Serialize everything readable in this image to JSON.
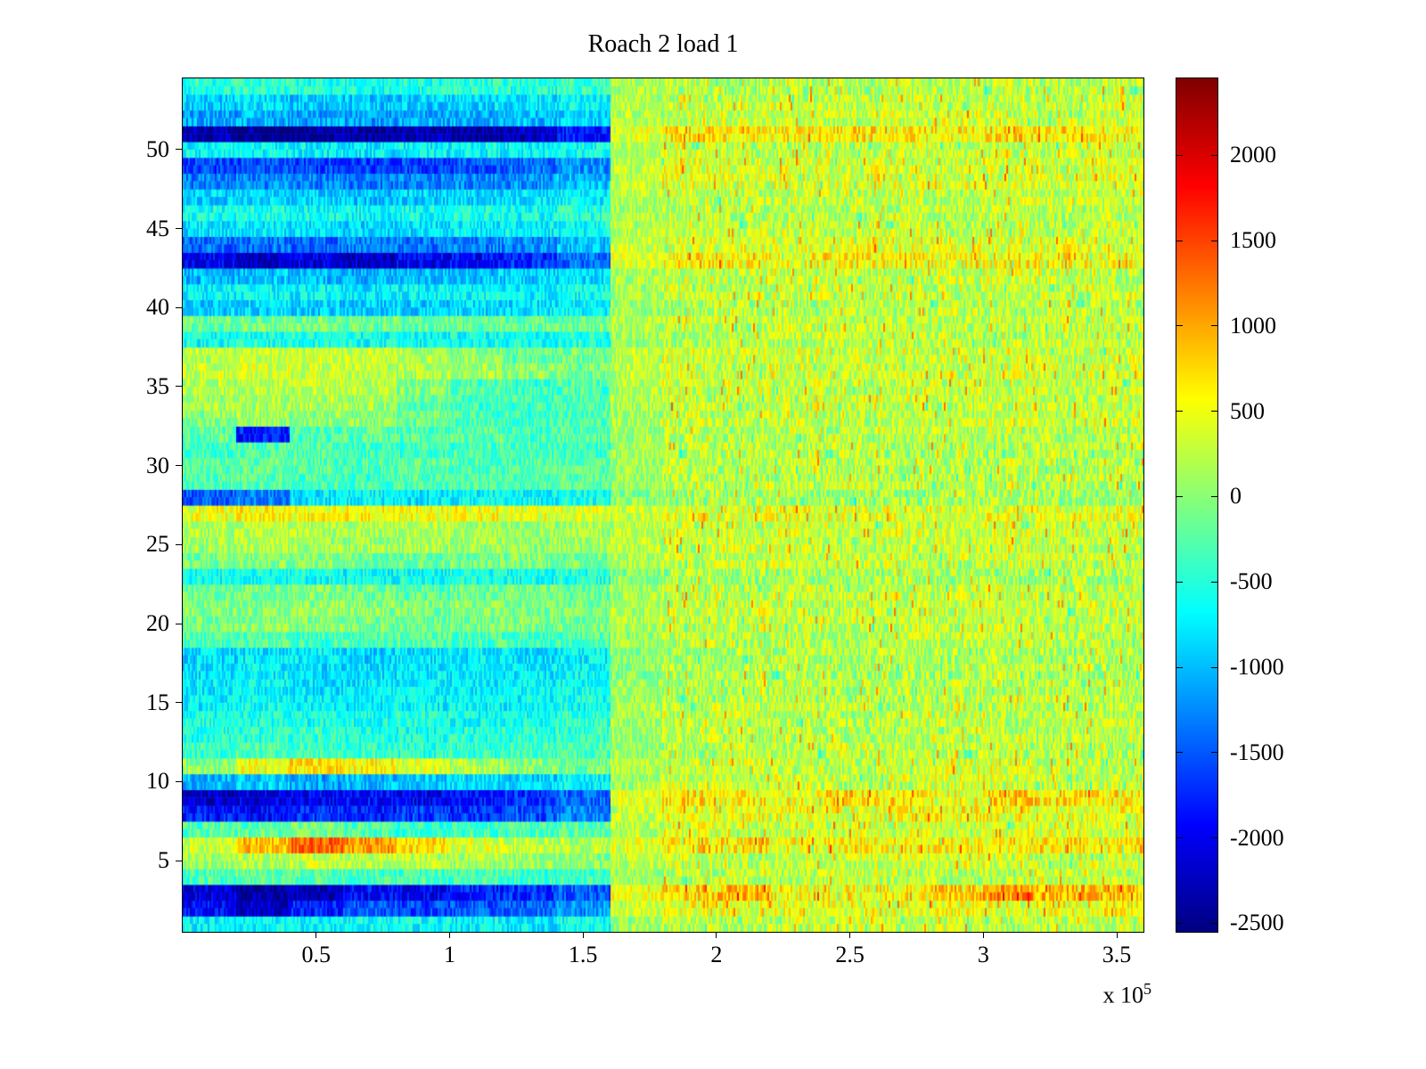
{
  "chart_data": {
    "type": "heatmap",
    "title": "Roach 2 load 1",
    "xlabel": "",
    "ylabel": "",
    "x_range": [
      0,
      360000
    ],
    "x_tick_values": [
      50000,
      100000,
      150000,
      200000,
      250000,
      300000,
      350000
    ],
    "x_tick_labels": [
      "0.5",
      "1",
      "1.5",
      "2",
      "2.5",
      "3",
      "3.5"
    ],
    "x_multiplier": {
      "base": "x 10",
      "exp": "5"
    },
    "y_range": [
      0.5,
      54.5
    ],
    "y_tick_values": [
      5,
      10,
      15,
      20,
      25,
      30,
      35,
      40,
      45,
      50
    ],
    "rows": 54,
    "cols": 18,
    "col_width_x": 20000,
    "clim": [
      -2550,
      2450
    ],
    "colormap": "jet",
    "colorbar_position": "right",
    "colorbar_tick_values": [
      2000,
      1500,
      1000,
      500,
      0,
      -500,
      -1000,
      -1500,
      -2000,
      -2500
    ],
    "colorbar_tick_labels": [
      "2000",
      "1500",
      "1000",
      "500",
      "0",
      "-500",
      "-1000",
      "-1500",
      "-2000",
      "-2500"
    ],
    "values_layout": "rows bottom-to-top, 18 columns spanning x=0..3.6e5, approximate mean values",
    "values": [
      [
        -700,
        -650,
        -700,
        -600,
        -650,
        -700,
        -750,
        -600,
        100,
        250,
        200,
        250,
        300,
        250,
        300,
        250,
        300,
        250
      ],
      [
        -1900,
        -2200,
        -1800,
        -1500,
        -1600,
        -1500,
        -1400,
        -1200,
        300,
        500,
        400,
        450,
        500,
        400,
        500,
        450,
        500,
        550
      ],
      [
        -2100,
        -2400,
        -2300,
        -1900,
        -2000,
        -1800,
        -1700,
        -1500,
        500,
        700,
        900,
        600,
        500,
        600,
        800,
        1100,
        900,
        800
      ],
      [
        -300,
        -200,
        -250,
        -300,
        -350,
        -300,
        -400,
        -350,
        100,
        200,
        250,
        200,
        300,
        250,
        200,
        250,
        300,
        250
      ],
      [
        100,
        200,
        300,
        250,
        200,
        150,
        100,
        0,
        200,
        300,
        250,
        300,
        250,
        300,
        350,
        300,
        250,
        300
      ],
      [
        300,
        900,
        1300,
        1100,
        700,
        400,
        300,
        200,
        400,
        600,
        700,
        500,
        600,
        550,
        600,
        650,
        700,
        600
      ],
      [
        -300,
        -200,
        -100,
        -300,
        -400,
        -350,
        -300,
        -250,
        200,
        400,
        350,
        300,
        400,
        350,
        300,
        350,
        400,
        350
      ],
      [
        -1800,
        -1900,
        -1700,
        -1800,
        -1600,
        -1700,
        -1500,
        -1300,
        300,
        500,
        450,
        500,
        400,
        500,
        550,
        500,
        450,
        500
      ],
      [
        -2200,
        -2100,
        -2000,
        -1900,
        -2000,
        -1800,
        -1700,
        -1400,
        400,
        700,
        600,
        500,
        700,
        600,
        500,
        800,
        700,
        600
      ],
      [
        -1000,
        -900,
        -1100,
        -1000,
        -900,
        -800,
        -900,
        -700,
        100,
        300,
        250,
        300,
        200,
        300,
        350,
        300,
        250,
        300
      ],
      [
        0,
        500,
        700,
        600,
        400,
        200,
        0,
        -100,
        200,
        300,
        350,
        300,
        250,
        300,
        350,
        400,
        300,
        250
      ],
      [
        -400,
        -300,
        -350,
        -400,
        -450,
        -400,
        -350,
        -300,
        100,
        200,
        250,
        200,
        300,
        250,
        200,
        250,
        300,
        200
      ],
      [
        -500,
        -450,
        -400,
        -500,
        -550,
        -500,
        -450,
        -400,
        100,
        250,
        200,
        250,
        200,
        250,
        300,
        250,
        200,
        250
      ],
      [
        -550,
        -500,
        -600,
        -550,
        -500,
        -600,
        -550,
        -450,
        150,
        250,
        300,
        250,
        200,
        250,
        300,
        250,
        300,
        250
      ],
      [
        -700,
        -650,
        -700,
        -750,
        -700,
        -650,
        -700,
        -600,
        100,
        200,
        250,
        200,
        250,
        200,
        250,
        300,
        250,
        200
      ],
      [
        -750,
        -700,
        -800,
        -750,
        -700,
        -750,
        -700,
        -600,
        100,
        200,
        150,
        250,
        200,
        250,
        200,
        250,
        200,
        250
      ],
      [
        -800,
        -750,
        -850,
        -800,
        -750,
        -800,
        -750,
        -650,
        0,
        150,
        200,
        150,
        200,
        150,
        200,
        250,
        200,
        150
      ],
      [
        -850,
        -800,
        -750,
        -850,
        -800,
        -750,
        -800,
        -700,
        0,
        100,
        150,
        200,
        150,
        200,
        150,
        200,
        150,
        200
      ],
      [
        -300,
        -250,
        -350,
        -300,
        -250,
        -300,
        -350,
        -300,
        100,
        250,
        200,
        250,
        200,
        250,
        200,
        250,
        200,
        250
      ],
      [
        -100,
        0,
        -50,
        -100,
        -150,
        -100,
        -50,
        -100,
        200,
        300,
        250,
        300,
        250,
        300,
        250,
        300,
        250,
        300
      ],
      [
        -50,
        0,
        50,
        0,
        -50,
        0,
        -100,
        -50,
        200,
        300,
        350,
        300,
        250,
        300,
        350,
        300,
        250,
        300
      ],
      [
        -150,
        -100,
        -50,
        -150,
        -200,
        -150,
        -100,
        -150,
        150,
        300,
        250,
        300,
        250,
        300,
        250,
        300,
        250,
        300
      ],
      [
        -600,
        -550,
        -600,
        -650,
        -600,
        -550,
        -600,
        -500,
        0,
        150,
        100,
        150,
        200,
        150,
        100,
        150,
        200,
        150
      ],
      [
        -100,
        -50,
        0,
        -100,
        -150,
        -100,
        -50,
        -100,
        200,
        300,
        250,
        300,
        250,
        300,
        250,
        300,
        250,
        300
      ],
      [
        100,
        200,
        150,
        100,
        150,
        100,
        50,
        100,
        250,
        300,
        350,
        300,
        250,
        300,
        350,
        300,
        250,
        300
      ],
      [
        150,
        250,
        200,
        150,
        200,
        150,
        100,
        150,
        250,
        350,
        300,
        350,
        300,
        350,
        300,
        350,
        300,
        350
      ],
      [
        500,
        600,
        550,
        600,
        500,
        550,
        450,
        400,
        300,
        450,
        400,
        450,
        400,
        450,
        400,
        450,
        400,
        450
      ],
      [
        -1500,
        -1300,
        -800,
        -700,
        -750,
        -700,
        -650,
        -600,
        0,
        100,
        150,
        100,
        150,
        100,
        150,
        200,
        150,
        100
      ],
      [
        -300,
        -250,
        -300,
        -350,
        -300,
        -250,
        -300,
        -250,
        100,
        200,
        250,
        200,
        250,
        200,
        250,
        200,
        250,
        200
      ],
      [
        -250,
        -200,
        -250,
        -300,
        -250,
        -300,
        -250,
        -200,
        100,
        250,
        200,
        250,
        200,
        250,
        200,
        250,
        200,
        250
      ],
      [
        -350,
        -300,
        -250,
        -350,
        -400,
        -350,
        -300,
        -350,
        100,
        200,
        250,
        200,
        250,
        200,
        250,
        200,
        250,
        200
      ],
      [
        -200,
        -1800,
        -300,
        -250,
        -300,
        -250,
        -300,
        -250,
        100,
        250,
        200,
        250,
        200,
        250,
        200,
        250,
        200,
        250
      ],
      [
        0,
        100,
        50,
        0,
        -100,
        -300,
        -400,
        -300,
        150,
        300,
        250,
        300,
        250,
        300,
        250,
        300,
        250,
        300
      ],
      [
        100,
        150,
        200,
        100,
        -200,
        -400,
        -350,
        -300,
        200,
        300,
        250,
        300,
        350,
        300,
        250,
        300,
        250,
        300
      ],
      [
        200,
        250,
        300,
        200,
        0,
        -300,
        -400,
        -300,
        200,
        300,
        350,
        300,
        250,
        300,
        350,
        300,
        250,
        300
      ],
      [
        300,
        350,
        300,
        250,
        200,
        100,
        0,
        -100,
        250,
        350,
        300,
        350,
        300,
        350,
        300,
        350,
        300,
        350
      ],
      [
        250,
        300,
        350,
        300,
        200,
        0,
        -200,
        -100,
        250,
        350,
        300,
        350,
        300,
        350,
        300,
        350,
        300,
        350
      ],
      [
        -600,
        -550,
        -500,
        -600,
        -650,
        -600,
        -550,
        -500,
        100,
        200,
        250,
        200,
        250,
        200,
        250,
        200,
        250,
        200
      ],
      [
        -150,
        -100,
        -50,
        -150,
        -200,
        -150,
        -200,
        -150,
        200,
        300,
        250,
        300,
        250,
        300,
        250,
        300,
        250,
        300
      ],
      [
        -900,
        -850,
        -900,
        -950,
        -900,
        -850,
        -800,
        -700,
        100,
        200,
        250,
        200,
        250,
        200,
        250,
        200,
        250,
        200
      ],
      [
        -700,
        -650,
        -700,
        -750,
        -700,
        -650,
        -700,
        -600,
        150,
        300,
        250,
        300,
        250,
        300,
        250,
        300,
        250,
        300
      ],
      [
        -1000,
        -950,
        -1000,
        -1050,
        -1000,
        -950,
        -900,
        -800,
        150,
        300,
        250,
        300,
        250,
        300,
        300,
        350,
        300,
        250
      ],
      [
        -2000,
        -2200,
        -2100,
        -2200,
        -2000,
        -1900,
        -1700,
        -1400,
        400,
        600,
        550,
        500,
        600,
        550,
        500,
        600,
        550,
        500
      ],
      [
        -1400,
        -1350,
        -1400,
        -1300,
        -1350,
        -1300,
        -1200,
        -1000,
        300,
        400,
        450,
        400,
        450,
        400,
        450,
        400,
        450,
        400
      ],
      [
        -800,
        -750,
        -800,
        -850,
        -800,
        -750,
        -700,
        -650,
        200,
        300,
        250,
        300,
        250,
        300,
        250,
        300,
        250,
        300
      ],
      [
        -600,
        -550,
        -600,
        -650,
        -600,
        -550,
        -600,
        -500,
        150,
        250,
        200,
        250,
        200,
        250,
        200,
        250,
        200,
        250
      ],
      [
        -900,
        -850,
        -900,
        -950,
        -900,
        -850,
        -800,
        -700,
        200,
        300,
        250,
        300,
        250,
        300,
        250,
        300,
        250,
        300
      ],
      [
        -1300,
        -1250,
        -1300,
        -1350,
        -1300,
        -1250,
        -1200,
        -1000,
        250,
        400,
        350,
        400,
        350,
        400,
        350,
        400,
        350,
        400
      ],
      [
        -1600,
        -1550,
        -1600,
        -1650,
        -1600,
        -1500,
        -1400,
        -1200,
        250,
        400,
        350,
        400,
        350,
        400,
        350,
        400,
        350,
        400
      ],
      [
        -700,
        -650,
        -700,
        -750,
        -700,
        -650,
        -700,
        -600,
        200,
        300,
        250,
        300,
        250,
        300,
        250,
        300,
        250,
        300
      ],
      [
        -2300,
        -2500,
        -2450,
        -2400,
        -2300,
        -2350,
        -2200,
        -1800,
        400,
        700,
        650,
        600,
        700,
        650,
        600,
        700,
        650,
        600
      ],
      [
        -1100,
        -1050,
        -1100,
        -1150,
        -1100,
        -1050,
        -1000,
        -900,
        200,
        300,
        350,
        300,
        250,
        300,
        350,
        300,
        250,
        300
      ],
      [
        -900,
        -850,
        -900,
        -950,
        -900,
        -850,
        -800,
        -700,
        200,
        300,
        250,
        300,
        250,
        300,
        250,
        300,
        250,
        300
      ],
      [
        -500,
        -450,
        -500,
        -550,
        -500,
        -450,
        -500,
        -400,
        150,
        250,
        200,
        250,
        200,
        250,
        200,
        250,
        200,
        250
      ]
    ],
    "texture": {
      "seed": 7,
      "noise_left": 350,
      "noise_right": 450,
      "spike_prob": 0.07,
      "spike_value": 700,
      "dip_prob": 0.05,
      "dip_value": 500
    }
  }
}
